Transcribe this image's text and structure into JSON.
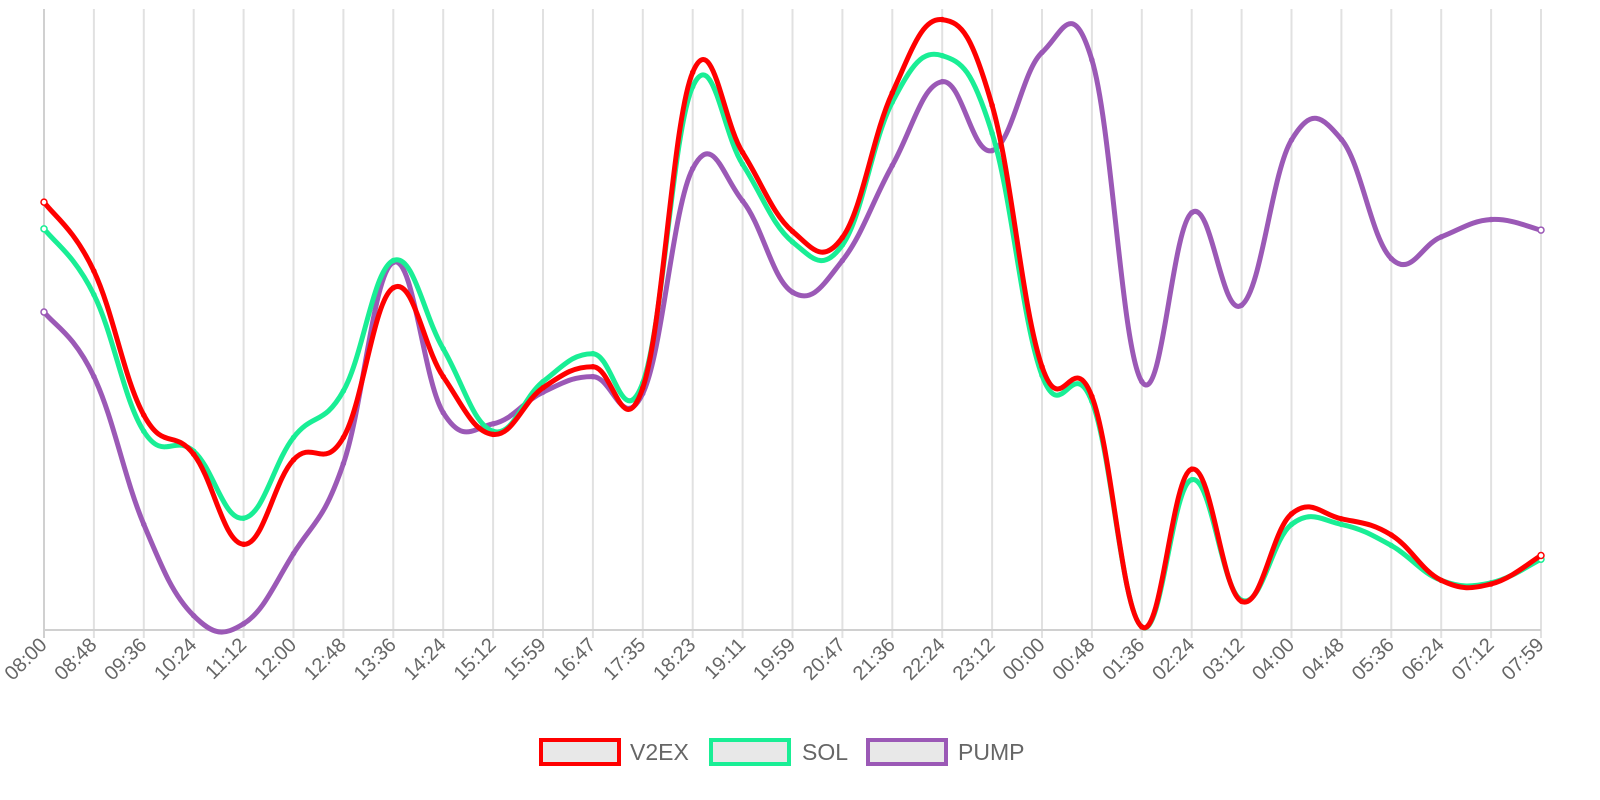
{
  "chart_data": {
    "type": "line",
    "title": "",
    "xlabel": "",
    "ylabel": "",
    "y_axis_labels_shown": false,
    "grid": "vertical",
    "legend_position": "bottom",
    "categories": [
      "08:00",
      "08:48",
      "09:36",
      "10:24",
      "11:12",
      "12:00",
      "12:48",
      "13:36",
      "14:24",
      "15:12",
      "15:59",
      "16:47",
      "17:35",
      "18:23",
      "19:11",
      "19:59",
      "20:47",
      "21:36",
      "22:24",
      "23:12",
      "00:00",
      "00:48",
      "01:36",
      "02:24",
      "03:12",
      "04:00",
      "04:48",
      "05:36",
      "06:24",
      "07:12",
      "07:59"
    ],
    "ylim": [
      0,
      100
    ],
    "series": [
      {
        "name": "V2EX",
        "color": "#ff0000",
        "values": [
          68.9,
          57.8,
          34.6,
          28.3,
          13.8,
          27.4,
          31.0,
          55.1,
          40.8,
          31.5,
          39.0,
          42.4,
          39.0,
          89.8,
          76.9,
          64.2,
          63.2,
          86.5,
          98.3,
          84.5,
          42.4,
          37.6,
          0.5,
          25.9,
          4.6,
          18.7,
          17.9,
          15.3,
          8.0,
          7.4,
          12.0
        ]
      },
      {
        "name": "SOL",
        "color": "#19ee95",
        "values": [
          64.6,
          54.0,
          32.0,
          28.8,
          18.0,
          31.0,
          38.5,
          59.5,
          45.3,
          32.0,
          40.0,
          44.5,
          39.8,
          87.5,
          75.0,
          62.5,
          62.0,
          85.0,
          92.5,
          80.0,
          41.0,
          36.8,
          0.5,
          24.2,
          4.8,
          17.0,
          17.0,
          13.6,
          8.0,
          7.6,
          11.4
        ]
      },
      {
        "name": "PUMP",
        "color": "#9b59b6",
        "values": [
          51.2,
          40.8,
          17.0,
          2.3,
          1.0,
          12.3,
          26.8,
          59.2,
          35.0,
          33.2,
          38.3,
          40.8,
          38.1,
          74.3,
          69.1,
          54.4,
          59.5,
          74.8,
          88.3,
          77.2,
          93.0,
          91.8,
          40.0,
          67.2,
          52.3,
          78.9,
          79.0,
          59.8,
          63.3,
          66.1,
          64.4
        ]
      }
    ]
  },
  "legend": {
    "items": [
      {
        "label": "V2EX",
        "color": "#ff0000"
      },
      {
        "label": "SOL",
        "color": "#19ee95"
      },
      {
        "label": "PUMP",
        "color": "#9b59b6"
      }
    ]
  }
}
